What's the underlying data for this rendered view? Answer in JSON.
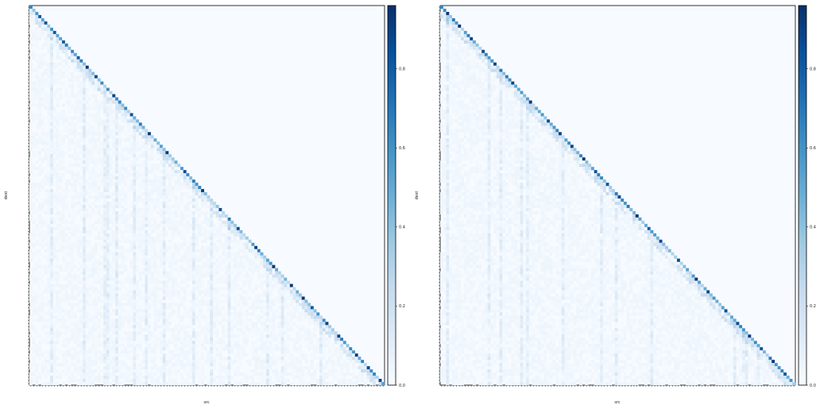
{
  "chart_data": [
    {
      "type": "heatmap",
      "title": "",
      "xlabel": "src",
      "ylabel": "dest",
      "n": 120,
      "colormap": "Blues",
      "vlim": [
        0,
        0.96
      ],
      "colorbar": {
        "ticks": [
          0.0,
          0.2,
          0.4,
          0.6,
          0.8
        ],
        "labels": [
          "0.0",
          "0.2",
          "0.4",
          "0.6",
          "0.8"
        ]
      },
      "grid": false,
      "strong_cells": [
        [
          3,
          3
        ],
        [
          5,
          5
        ],
        [
          8,
          8
        ],
        [
          11,
          11
        ],
        [
          16,
          16
        ],
        [
          19,
          19
        ],
        [
          22,
          22
        ],
        [
          28,
          28
        ],
        [
          34,
          34
        ],
        [
          40,
          40
        ],
        [
          46,
          46
        ],
        [
          52,
          52
        ],
        [
          58,
          58
        ],
        [
          64,
          64
        ],
        [
          70,
          70
        ],
        [
          76,
          76
        ],
        [
          82,
          82
        ],
        [
          88,
          88
        ],
        [
          92,
          92
        ],
        [
          95,
          95
        ],
        [
          100,
          100
        ],
        [
          104,
          104
        ],
        [
          110,
          110
        ],
        [
          114,
          114
        ],
        [
          118,
          118
        ]
      ]
    },
    {
      "type": "heatmap",
      "title": "",
      "xlabel": "src",
      "ylabel": "dest",
      "n": 120,
      "colormap": "Blues",
      "vlim": [
        0,
        0.96
      ],
      "colorbar": {
        "ticks": [
          0.0,
          0.2,
          0.4,
          0.6,
          0.8
        ],
        "labels": [
          "0.0",
          "0.2",
          "0.4",
          "0.6",
          "0.8"
        ]
      },
      "grid": false,
      "strong_cells": [
        [
          2,
          2
        ],
        [
          6,
          6
        ],
        [
          10,
          10
        ],
        [
          14,
          14
        ],
        [
          18,
          18
        ],
        [
          24,
          24
        ],
        [
          30,
          30
        ],
        [
          36,
          36
        ],
        [
          40,
          40
        ],
        [
          44,
          44
        ],
        [
          48,
          48
        ],
        [
          52,
          52
        ],
        [
          56,
          56
        ],
        [
          60,
          60
        ],
        [
          66,
          66
        ],
        [
          70,
          70
        ],
        [
          74,
          74
        ],
        [
          80,
          80
        ],
        [
          86,
          86
        ],
        [
          90,
          90
        ],
        [
          96,
          96
        ],
        [
          100,
          100
        ],
        [
          104,
          104
        ],
        [
          108,
          108
        ],
        [
          112,
          112
        ],
        [
          116,
          116
        ]
      ]
    }
  ]
}
